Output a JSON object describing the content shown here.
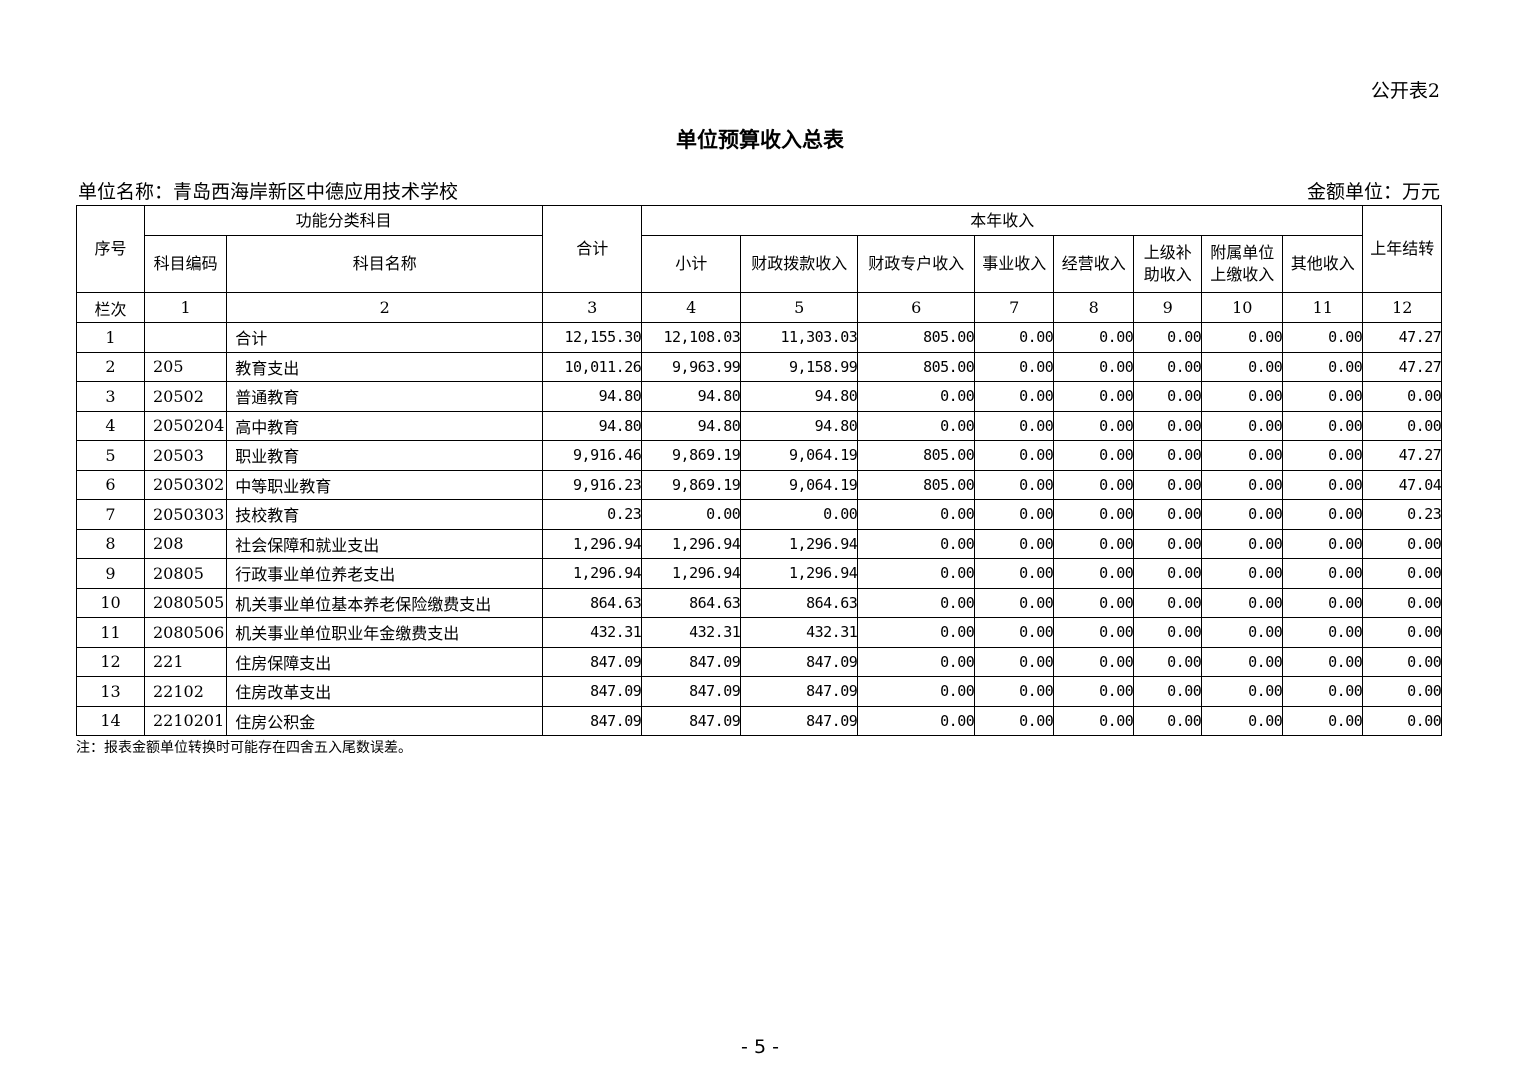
{
  "form_no": "公开表2",
  "title": "单位预算收入总表",
  "unit_name": "单位名称：青岛西海岸新区中德应用技术学校",
  "amount_unit": "金额单位：万元",
  "headers": {
    "seq": "序号",
    "func_group": "功能分类科目",
    "code": "科目编码",
    "name": "科目名称",
    "total": "合计",
    "this_year": "本年收入",
    "subtotal": "小计",
    "fiscal": "财政拨款收入",
    "fiscal_special": "财政专户收入",
    "business": "事业收入",
    "operating": "经营收入",
    "superior": "上级补助收入",
    "affiliated": "附属单位上缴收入",
    "other": "其他收入",
    "carryover": "上年结转"
  },
  "column_row": [
    "栏次",
    "1",
    "2",
    "3",
    "4",
    "5",
    "6",
    "7",
    "8",
    "9",
    "10",
    "11",
    "12"
  ],
  "rows": [
    [
      "1",
      "",
      "合计",
      "12,155.30",
      "12,108.03",
      "11,303.03",
      "805.00",
      "0.00",
      "0.00",
      "0.00",
      "0.00",
      "0.00",
      "47.27"
    ],
    [
      "2",
      "205",
      "教育支出",
      "10,011.26",
      "9,963.99",
      "9,158.99",
      "805.00",
      "0.00",
      "0.00",
      "0.00",
      "0.00",
      "0.00",
      "47.27"
    ],
    [
      "3",
      "20502",
      "普通教育",
      "94.80",
      "94.80",
      "94.80",
      "0.00",
      "0.00",
      "0.00",
      "0.00",
      "0.00",
      "0.00",
      "0.00"
    ],
    [
      "4",
      "2050204",
      "高中教育",
      "94.80",
      "94.80",
      "94.80",
      "0.00",
      "0.00",
      "0.00",
      "0.00",
      "0.00",
      "0.00",
      "0.00"
    ],
    [
      "5",
      "20503",
      "职业教育",
      "9,916.46",
      "9,869.19",
      "9,064.19",
      "805.00",
      "0.00",
      "0.00",
      "0.00",
      "0.00",
      "0.00",
      "47.27"
    ],
    [
      "6",
      "2050302",
      "中等职业教育",
      "9,916.23",
      "9,869.19",
      "9,064.19",
      "805.00",
      "0.00",
      "0.00",
      "0.00",
      "0.00",
      "0.00",
      "47.04"
    ],
    [
      "7",
      "2050303",
      "技校教育",
      "0.23",
      "0.00",
      "0.00",
      "0.00",
      "0.00",
      "0.00",
      "0.00",
      "0.00",
      "0.00",
      "0.23"
    ],
    [
      "8",
      "208",
      "社会保障和就业支出",
      "1,296.94",
      "1,296.94",
      "1,296.94",
      "0.00",
      "0.00",
      "0.00",
      "0.00",
      "0.00",
      "0.00",
      "0.00"
    ],
    [
      "9",
      "20805",
      "行政事业单位养老支出",
      "1,296.94",
      "1,296.94",
      "1,296.94",
      "0.00",
      "0.00",
      "0.00",
      "0.00",
      "0.00",
      "0.00",
      "0.00"
    ],
    [
      "10",
      "2080505",
      "机关事业单位基本养老保险缴费支出",
      "864.63",
      "864.63",
      "864.63",
      "0.00",
      "0.00",
      "0.00",
      "0.00",
      "0.00",
      "0.00",
      "0.00"
    ],
    [
      "11",
      "2080506",
      "机关事业单位职业年金缴费支出",
      "432.31",
      "432.31",
      "432.31",
      "0.00",
      "0.00",
      "0.00",
      "0.00",
      "0.00",
      "0.00",
      "0.00"
    ],
    [
      "12",
      "221",
      "住房保障支出",
      "847.09",
      "847.09",
      "847.09",
      "0.00",
      "0.00",
      "0.00",
      "0.00",
      "0.00",
      "0.00",
      "0.00"
    ],
    [
      "13",
      "22102",
      "住房改革支出",
      "847.09",
      "847.09",
      "847.09",
      "0.00",
      "0.00",
      "0.00",
      "0.00",
      "0.00",
      "0.00",
      "0.00"
    ],
    [
      "14",
      "2210201",
      "住房公积金",
      "847.09",
      "847.09",
      "847.09",
      "0.00",
      "0.00",
      "0.00",
      "0.00",
      "0.00",
      "0.00",
      "0.00"
    ]
  ],
  "note": "注：报表金额单位转换时可能存在四舍五入尾数误差。",
  "page_number": "- 5 -"
}
